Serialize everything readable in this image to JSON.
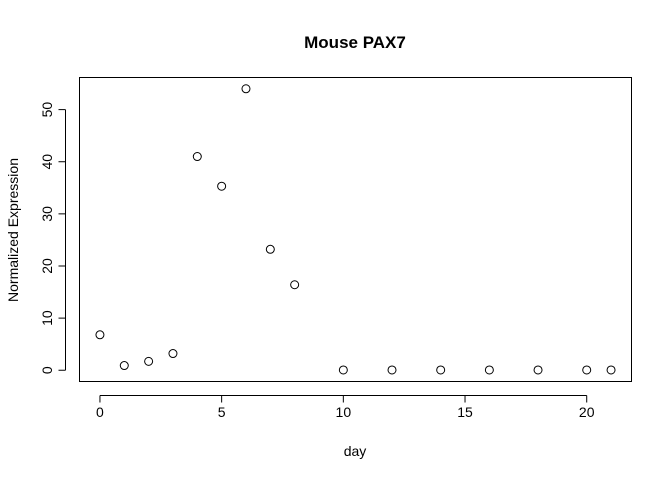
{
  "chart_data": {
    "type": "scatter",
    "title": "Mouse PAX7",
    "xlabel": "day",
    "ylabel": "Normalized Expression",
    "xlim": [
      -0.84,
      21.84
    ],
    "ylim": [
      -2.16,
      56.16
    ],
    "x_ticks": [
      0,
      5,
      10,
      15,
      20
    ],
    "y_ticks": [
      0,
      10,
      20,
      30,
      40,
      50
    ],
    "marker": "open-circle",
    "grid": false,
    "legend": "none",
    "x": [
      0,
      1,
      2,
      3,
      4,
      5,
      6,
      7,
      8,
      10,
      12,
      14,
      16,
      18,
      20,
      21
    ],
    "y": [
      6.8,
      0.9,
      1.7,
      3.2,
      41.0,
      35.3,
      54.0,
      23.2,
      16.4,
      0.05,
      0.05,
      0.05,
      0.05,
      0.05,
      0.05,
      0.05
    ]
  }
}
